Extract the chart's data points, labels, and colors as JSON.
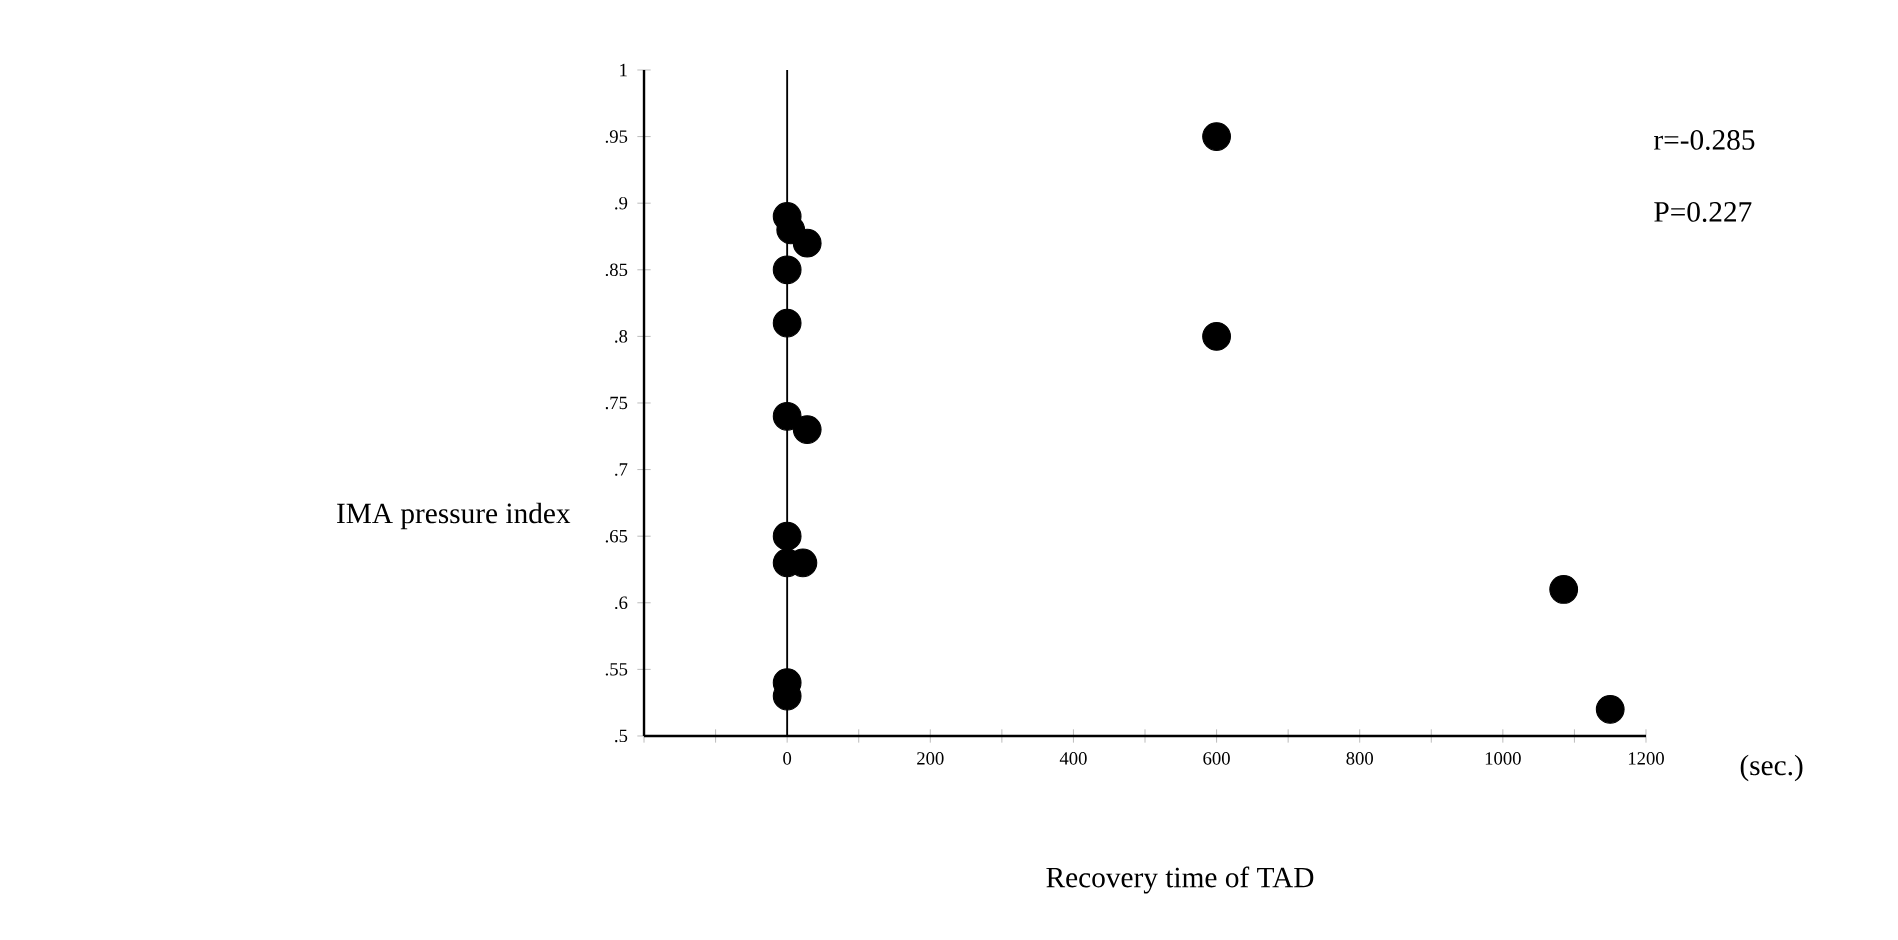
{
  "chart_data": {
    "type": "scatter",
    "xlabel": "Recovery time of TAD",
    "ylabel": "IMA pressure index",
    "annotations": [
      "r=-0.285",
      "P=0.227",
      "(sec.)"
    ],
    "x": [
      0,
      5,
      28,
      0,
      0,
      0,
      28,
      0,
      0,
      22,
      0,
      0,
      600,
      600,
      1085,
      1150
    ],
    "values": [
      0.89,
      0.88,
      0.87,
      0.85,
      0.81,
      0.74,
      0.73,
      0.65,
      0.63,
      0.63,
      0.54,
      0.53,
      0.95,
      0.8,
      0.61,
      0.52
    ],
    "color": "#000000",
    "xlim": [
      -200,
      1200
    ],
    "xticks": [
      {
        "value": -200,
        "label": null
      },
      {
        "value": -100,
        "label": null
      },
      0,
      {
        "value": 100,
        "label": null
      },
      200,
      {
        "value": 300,
        "label": null
      },
      400,
      {
        "value": 500,
        "label": null
      },
      600,
      {
        "value": 700,
        "label": null
      },
      800,
      {
        "value": 900,
        "label": null
      },
      1000,
      {
        "value": 1100,
        "label": null
      },
      1200
    ],
    "ylim": [
      0.5,
      1
    ],
    "yticks": [
      {
        "value": 0.5,
        "label": ".5"
      },
      {
        "value": 0.55,
        "label": ".55"
      },
      {
        "value": 0.6,
        "label": ".6"
      },
      {
        "value": 0.65,
        "label": ".65"
      },
      {
        "value": 0.7,
        "label": ".7"
      },
      {
        "value": 0.75,
        "label": ".75"
      },
      {
        "value": 0.8,
        "label": ".8"
      },
      {
        "value": 0.85,
        "label": ".85"
      },
      {
        "value": 0.9,
        "label": ".9"
      },
      {
        "value": 0.95,
        "label": ".95"
      },
      {
        "value": 1,
        "label": "1"
      }
    ],
    "ref_lines": [
      {
        "axis": "x",
        "value": 0,
        "color": "#000000"
      }
    ]
  }
}
